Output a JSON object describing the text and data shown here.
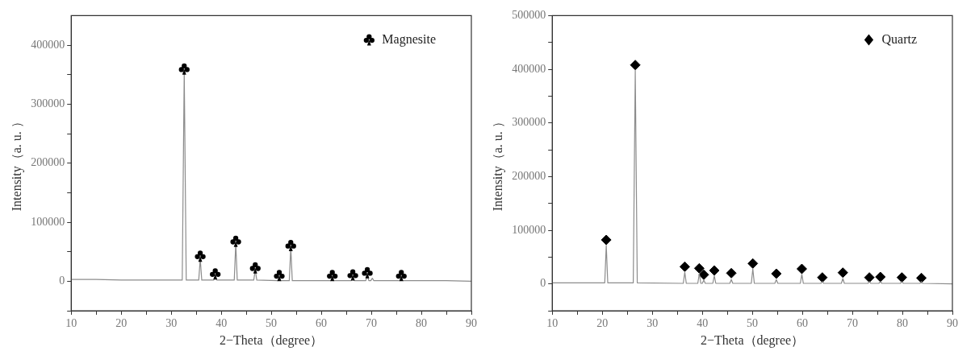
{
  "chart_data": [
    {
      "type": "line",
      "xlabel": "2−Theta（degree）",
      "ylabel": "Intensity（a. u. ）",
      "xlim": [
        10,
        90
      ],
      "xticks": [
        10,
        {
          "value": 15,
          "label": null
        },
        20,
        {
          "value": 25,
          "label": null
        },
        30,
        {
          "value": 35,
          "label": null
        },
        40,
        {
          "value": 45,
          "label": null
        },
        50,
        {
          "value": 55,
          "label": null
        },
        60,
        {
          "value": 65,
          "label": null
        },
        70,
        {
          "value": 75,
          "label": null
        },
        80,
        {
          "value": 85,
          "label": null
        },
        90
      ],
      "ylim": [
        -50000,
        450000
      ],
      "yticks": [
        {
          "value": -50000,
          "label": null
        },
        0,
        {
          "value": 50000,
          "label": null
        },
        100000,
        {
          "value": 150000,
          "label": null
        },
        200000,
        {
          "value": 250000,
          "label": null
        },
        300000,
        {
          "value": 350000,
          "label": null
        },
        400000
      ],
      "legend": "top right",
      "grid": false,
      "series": [
        {
          "color": "#8c8c8c",
          "marker": "none",
          "x": [
            10,
            15,
            20,
            25,
            30,
            32.2,
            32.6,
            33.0,
            35.5,
            35.8,
            36.1,
            38.5,
            38.8,
            39.1,
            42.6,
            42.9,
            43.2,
            46.5,
            46.8,
            47.1,
            51.3,
            51.6,
            51.9,
            53.6,
            53.9,
            54.2,
            61.9,
            62.2,
            62.5,
            66.0,
            66.3,
            66.6,
            68.9,
            69.2,
            69.5,
            69.9,
            70.2,
            70.5,
            75.7,
            76.0,
            76.3,
            80,
            85,
            90
          ],
          "values": [
            3000,
            3000,
            2000,
            2000,
            2000,
            2000,
            355000,
            2000,
            2000,
            38000,
            2000,
            2000,
            8000,
            2000,
            2000,
            64000,
            2000,
            2000,
            19000,
            2000,
            1000,
            7000,
            1000,
            1000,
            57000,
            1000,
            1000,
            7000,
            1000,
            1000,
            8000,
            1000,
            1000,
            11000,
            1000,
            1000,
            5000,
            1000,
            1000,
            7000,
            1000,
            1000,
            1000,
            0
          ]
        },
        {
          "type": "scatter",
          "name": "Magnesite",
          "color": "#000000",
          "x": [
            32.6,
            35.8,
            38.8,
            42.9,
            46.8,
            51.6,
            53.9,
            62.2,
            66.3,
            69.2,
            76.0
          ],
          "values": [
            362000,
            45000,
            15000,
            70000,
            25000,
            12000,
            63000,
            12000,
            13000,
            17000,
            12000
          ]
        }
      ]
    },
    {
      "type": "line",
      "xlabel": "2−Theta（degree）",
      "ylabel": "Intensity（a. u. ）",
      "xlim": [
        10,
        90
      ],
      "xticks": [
        10,
        {
          "value": 15,
          "label": null
        },
        20,
        {
          "value": 25,
          "label": null
        },
        30,
        {
          "value": 35,
          "label": null
        },
        40,
        {
          "value": 45,
          "label": null
        },
        50,
        {
          "value": 55,
          "label": null
        },
        60,
        {
          "value": 65,
          "label": null
        },
        70,
        {
          "value": 75,
          "label": null
        },
        80,
        {
          "value": 85,
          "label": null
        },
        90
      ],
      "ylim": [
        -50000,
        500000
      ],
      "yticks": [
        {
          "value": -50000,
          "label": null
        },
        0,
        {
          "value": 50000,
          "label": null
        },
        100000,
        {
          "value": 150000,
          "label": null
        },
        200000,
        {
          "value": 250000,
          "label": null
        },
        300000,
        {
          "value": 350000,
          "label": null
        },
        400000,
        {
          "value": 450000,
          "label": null
        },
        500000
      ],
      "legend": "top right",
      "grid": false,
      "series": [
        {
          "color": "#8c8c8c",
          "marker": "none",
          "x": [
            10,
            15,
            20.5,
            20.8,
            21.1,
            26.2,
            26.6,
            27.0,
            36.2,
            36.5,
            36.8,
            39.1,
            39.4,
            39.7,
            40.0,
            40.3,
            40.6,
            42.1,
            42.4,
            42.7,
            45.5,
            45.8,
            46.1,
            49.8,
            50.1,
            50.4,
            54.5,
            54.8,
            55.1,
            59.6,
            59.9,
            60.2,
            63.7,
            64.0,
            64.3,
            67.8,
            68.1,
            68.4,
            73.1,
            73.4,
            73.7,
            75.3,
            75.6,
            75.9,
            79.6,
            79.9,
            80.2,
            83.5,
            83.8,
            84.1,
            90
          ],
          "values": [
            2000,
            2000,
            2000,
            72000,
            2000,
            2000,
            398000,
            2000,
            1000,
            22000,
            1000,
            1000,
            19000,
            1000,
            1000,
            7000,
            1000,
            1000,
            15000,
            1000,
            1000,
            8000,
            1000,
            1000,
            28000,
            1000,
            1000,
            8000,
            1000,
            1000,
            18000,
            1000,
            1000,
            4000,
            1000,
            1000,
            10000,
            1000,
            1000,
            4000,
            1000,
            1000,
            4000,
            1000,
            1000,
            4000,
            1000,
            1000,
            4000,
            1000,
            0
          ]
        },
        {
          "type": "scatter",
          "name": "Quartz",
          "color": "#000000",
          "marker": "diamond",
          "x": [
            20.8,
            26.6,
            36.5,
            39.4,
            40.3,
            42.4,
            45.8,
            50.1,
            54.8,
            59.9,
            64.0,
            68.1,
            73.4,
            75.6,
            79.9,
            83.8
          ],
          "values": [
            82000,
            408000,
            32000,
            29000,
            17000,
            25000,
            20000,
            38000,
            19000,
            28000,
            12000,
            21000,
            12000,
            13000,
            12000,
            11000
          ]
        }
      ]
    }
  ]
}
